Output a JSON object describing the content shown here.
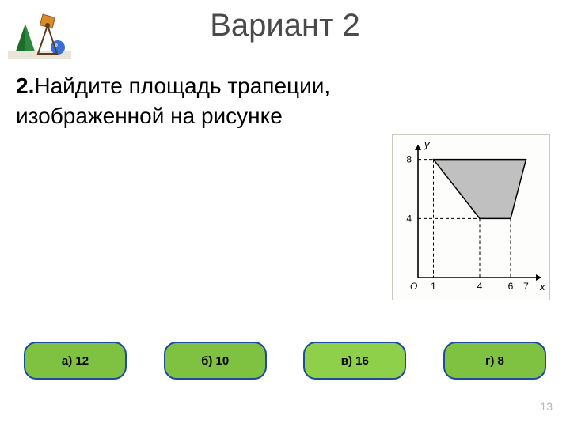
{
  "title": "Вариант 2",
  "question": {
    "number": "2.",
    "text": "Найдите  площадь  трапеции, изображенной  на  рисунке"
  },
  "chart": {
    "type": "geometric-figure",
    "background_color": "#fdfdfb",
    "axis_color": "#000000",
    "shape": "trapezoid",
    "shape_fill": "#b5b5b5",
    "shape_stroke": "#000000",
    "dash_color": "#000000",
    "x_axis_label": "x",
    "y_axis_label": "y",
    "origin_label": "O",
    "x_ticks": [
      1,
      4,
      6,
      7
    ],
    "y_ticks": [
      4,
      8
    ],
    "trapezoid_vertices_xy": [
      [
        1,
        8
      ],
      [
        7,
        8
      ],
      [
        6,
        4
      ],
      [
        4,
        4
      ]
    ],
    "x_range": [
      0,
      8
    ],
    "y_range": [
      0,
      9
    ],
    "label_fontsize": 12,
    "shape_opacity": 0.85
  },
  "answers": [
    {
      "key": "a",
      "label": "а)  12",
      "highlight": false
    },
    {
      "key": "b",
      "label": "б)  10",
      "highlight": false
    },
    {
      "key": "v",
      "label": "в)  16",
      "highlight": true
    },
    {
      "key": "g",
      "label": "г)  8",
      "highlight": false
    }
  ],
  "page_number": "13",
  "colors": {
    "answer_fill": "#7fc241",
    "answer_highlight_fill": "#8fd04a",
    "answer_border": "#1f4aa0",
    "title_color": "#4a4a4a",
    "page_num_color": "#b9b5ac"
  }
}
